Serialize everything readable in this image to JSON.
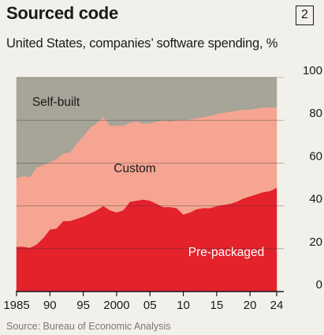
{
  "header": {
    "title": "Sourced code",
    "badge": "2",
    "subtitle": "United States, companies’ software spending, %"
  },
  "footer": {
    "source": "Source: Bureau of Economic Analysis"
  },
  "colors": {
    "pre_packaged": "#e3222c",
    "custom": "#f6a592",
    "self_built": "#a7a498",
    "background": "#f2f0ea"
  },
  "chart_data": {
    "type": "area",
    "stacked": true,
    "xlim": [
      1985,
      2024
    ],
    "ylim": [
      0,
      100
    ],
    "x_ticks": [
      1985,
      1990,
      1995,
      2000,
      2005,
      2010,
      2015,
      2020,
      2024
    ],
    "x_tick_labels": [
      "1985",
      "90",
      "95",
      "2000",
      "05",
      "10",
      "15",
      "20",
      "24"
    ],
    "y_ticks": [
      0,
      20,
      40,
      60,
      80,
      100
    ],
    "y_tick_labels": [
      "0",
      "20",
      "40",
      "60",
      "80",
      "100"
    ],
    "y_axis_side": "right",
    "grid": true,
    "series": [
      {
        "name": "Pre-packaged",
        "x": [
          1985,
          1986,
          1987,
          1988,
          1989,
          1990,
          1991,
          1992,
          1993,
          1994,
          1995,
          1996,
          1997,
          1998,
          1999,
          2000,
          2001,
          2002,
          2003,
          2004,
          2005,
          2006,
          2007,
          2008,
          2009,
          2010,
          2011,
          2012,
          2013,
          2014,
          2015,
          2016,
          2017,
          2018,
          2019,
          2020,
          2021,
          2022,
          2023,
          2024
        ],
        "values": [
          21,
          21,
          20.5,
          22,
          25,
          29,
          29.5,
          33,
          33,
          34,
          35,
          36.5,
          38,
          40,
          38,
          37,
          38,
          42,
          42.5,
          43,
          42.5,
          41,
          39.5,
          39.5,
          39,
          36,
          37,
          38.5,
          39,
          39,
          40,
          40.5,
          41,
          42,
          43.5,
          44.5,
          45.5,
          46.5,
          47,
          48.5
        ]
      },
      {
        "name": "Custom",
        "x": [
          1985,
          1986,
          1987,
          1988,
          1989,
          1990,
          1991,
          1992,
          1993,
          1994,
          1995,
          1996,
          1997,
          1998,
          1999,
          2000,
          2001,
          2002,
          2003,
          2004,
          2005,
          2006,
          2007,
          2008,
          2009,
          2010,
          2011,
          2012,
          2013,
          2014,
          2015,
          2016,
          2017,
          2018,
          2019,
          2020,
          2021,
          2022,
          2023,
          2024
        ],
        "values": [
          32,
          33,
          33,
          36,
          34,
          31.5,
          32.5,
          31.5,
          32,
          35,
          37.5,
          40,
          40.5,
          41.5,
          39.5,
          40.5,
          39.5,
          37,
          37,
          35.5,
          36,
          38.5,
          40.5,
          40,
          41,
          44,
          43.5,
          42.5,
          42.5,
          43,
          43,
          43,
          43,
          42.5,
          41.5,
          40.5,
          40,
          39.5,
          39,
          37.5
        ]
      },
      {
        "name": "Self-built",
        "x": [
          1985,
          1986,
          1987,
          1988,
          1989,
          1990,
          1991,
          1992,
          1993,
          1994,
          1995,
          1996,
          1997,
          1998,
          1999,
          2000,
          2001,
          2002,
          2003,
          2004,
          2005,
          2006,
          2007,
          2008,
          2009,
          2010,
          2011,
          2012,
          2013,
          2014,
          2015,
          2016,
          2017,
          2018,
          2019,
          2020,
          2021,
          2022,
          2023,
          2024
        ],
        "values": [
          47,
          46,
          46.5,
          42,
          41,
          39.5,
          38,
          35.5,
          35,
          31,
          27.5,
          23.5,
          21.5,
          18.5,
          22.5,
          22.5,
          22.5,
          21,
          20.5,
          21.5,
          21.5,
          20.5,
          20,
          20.5,
          20,
          20,
          19.5,
          19,
          18.5,
          18,
          17,
          16.5,
          16,
          15.5,
          15,
          15,
          14.5,
          14,
          14,
          14
        ]
      }
    ]
  }
}
